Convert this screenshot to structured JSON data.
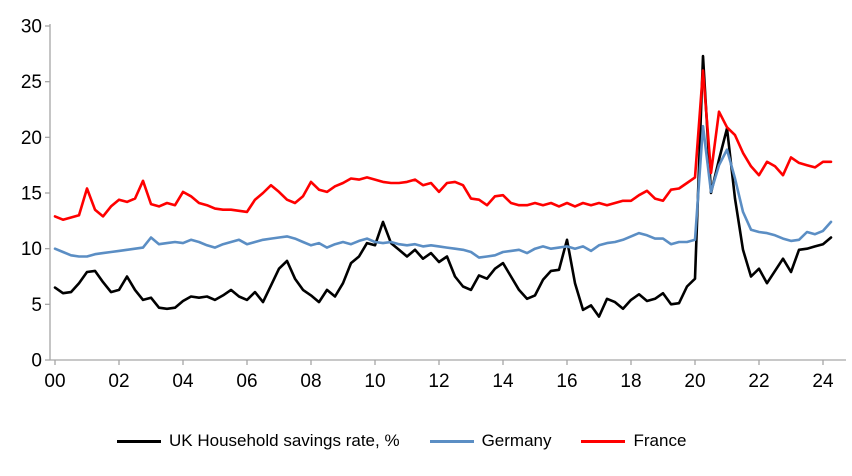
{
  "window": {
    "background": "#ffffff"
  },
  "chart_data": {
    "type": "line",
    "title": "",
    "subtitle": "",
    "legend_position": "bottom",
    "grid": false,
    "frequency": "quarterly",
    "start": "2000-Q1",
    "end": "2024-Q2",
    "axis_color": "#A6A6A6",
    "tick_label_color": "#000000",
    "x_axis": {
      "label": "",
      "tick_labels": [
        "00",
        "02",
        "04",
        "06",
        "08",
        "10",
        "12",
        "14",
        "16",
        "18",
        "20",
        "22",
        "24"
      ]
    },
    "y_axis": {
      "label": "",
      "min": 0,
      "max": 30,
      "tick_interval": 5,
      "tick_labels": [
        "0",
        "5",
        "10",
        "15",
        "20",
        "25",
        "30"
      ]
    },
    "series": [
      {
        "name": "UK Household savings rate, %",
        "color": "#000000",
        "values": [
          6.5,
          6.0,
          6.1,
          6.9,
          7.9,
          8.0,
          7.0,
          6.1,
          6.3,
          7.5,
          6.3,
          5.4,
          5.6,
          4.7,
          4.6,
          4.7,
          5.3,
          5.7,
          5.6,
          5.7,
          5.4,
          5.8,
          6.3,
          5.7,
          5.4,
          6.1,
          5.2,
          6.7,
          8.2,
          8.9,
          7.3,
          6.3,
          5.8,
          5.2,
          6.3,
          5.7,
          6.9,
          8.7,
          9.3,
          10.5,
          10.3,
          12.4,
          10.5,
          9.9,
          9.3,
          9.9,
          9.1,
          9.6,
          8.8,
          9.3,
          7.5,
          6.6,
          6.3,
          7.6,
          7.3,
          8.2,
          8.7,
          7.5,
          6.3,
          5.5,
          5.8,
          7.2,
          8.0,
          8.1,
          10.8,
          6.9,
          4.5,
          4.9,
          3.9,
          5.5,
          5.2,
          4.6,
          5.4,
          5.9,
          5.3,
          5.5,
          6.0,
          5.0,
          5.1,
          6.6,
          7.3,
          27.3,
          15.0,
          18.0,
          20.8,
          14.5,
          9.9,
          7.5,
          8.2,
          6.9,
          8.0,
          9.1,
          7.9,
          9.9,
          10.0,
          10.2,
          10.4,
          11.0
        ]
      },
      {
        "name": "Germany",
        "color": "#5B8EC4",
        "values": [
          10.0,
          9.7,
          9.4,
          9.3,
          9.3,
          9.5,
          9.6,
          9.7,
          9.8,
          9.9,
          10.0,
          10.1,
          11.0,
          10.4,
          10.5,
          10.6,
          10.5,
          10.8,
          10.6,
          10.3,
          10.1,
          10.4,
          10.6,
          10.8,
          10.4,
          10.6,
          10.8,
          10.9,
          11.0,
          11.1,
          10.9,
          10.6,
          10.3,
          10.5,
          10.1,
          10.4,
          10.6,
          10.4,
          10.7,
          10.9,
          10.6,
          10.5,
          10.6,
          10.4,
          10.3,
          10.4,
          10.2,
          10.3,
          10.2,
          10.1,
          10.0,
          9.9,
          9.7,
          9.2,
          9.3,
          9.4,
          9.7,
          9.8,
          9.9,
          9.6,
          10.0,
          10.2,
          10.0,
          10.1,
          10.2,
          10.0,
          10.2,
          9.8,
          10.3,
          10.5,
          10.6,
          10.8,
          11.1,
          11.4,
          11.2,
          10.9,
          10.9,
          10.4,
          10.6,
          10.6,
          10.8,
          21.0,
          15.1,
          17.5,
          18.9,
          16.3,
          13.3,
          11.7,
          11.5,
          11.4,
          11.2,
          10.9,
          10.7,
          10.8,
          11.5,
          11.3,
          11.6,
          12.4
        ]
      },
      {
        "name": "France",
        "color": "#FF0000",
        "values": [
          12.9,
          12.6,
          12.8,
          13.0,
          15.4,
          13.5,
          12.9,
          13.8,
          14.4,
          14.2,
          14.5,
          16.1,
          14.0,
          13.8,
          14.1,
          13.9,
          15.1,
          14.7,
          14.1,
          13.9,
          13.6,
          13.5,
          13.5,
          13.4,
          13.3,
          14.4,
          15.0,
          15.7,
          15.1,
          14.4,
          14.1,
          14.7,
          16.0,
          15.3,
          15.1,
          15.6,
          15.9,
          16.3,
          16.2,
          16.4,
          16.2,
          16.0,
          15.9,
          15.9,
          16.0,
          16.2,
          15.7,
          15.9,
          15.1,
          15.9,
          16.0,
          15.7,
          14.5,
          14.4,
          13.9,
          14.7,
          14.8,
          14.1,
          13.9,
          13.9,
          14.1,
          13.9,
          14.1,
          13.8,
          14.1,
          13.8,
          14.1,
          13.9,
          14.1,
          13.9,
          14.1,
          14.3,
          14.3,
          14.8,
          15.2,
          14.5,
          14.3,
          15.3,
          15.4,
          15.9,
          16.4,
          26.0,
          16.8,
          22.3,
          20.9,
          20.2,
          18.6,
          17.4,
          16.6,
          17.8,
          17.4,
          16.6,
          18.2,
          17.7,
          17.5,
          17.3,
          17.8,
          17.8
        ]
      }
    ]
  }
}
